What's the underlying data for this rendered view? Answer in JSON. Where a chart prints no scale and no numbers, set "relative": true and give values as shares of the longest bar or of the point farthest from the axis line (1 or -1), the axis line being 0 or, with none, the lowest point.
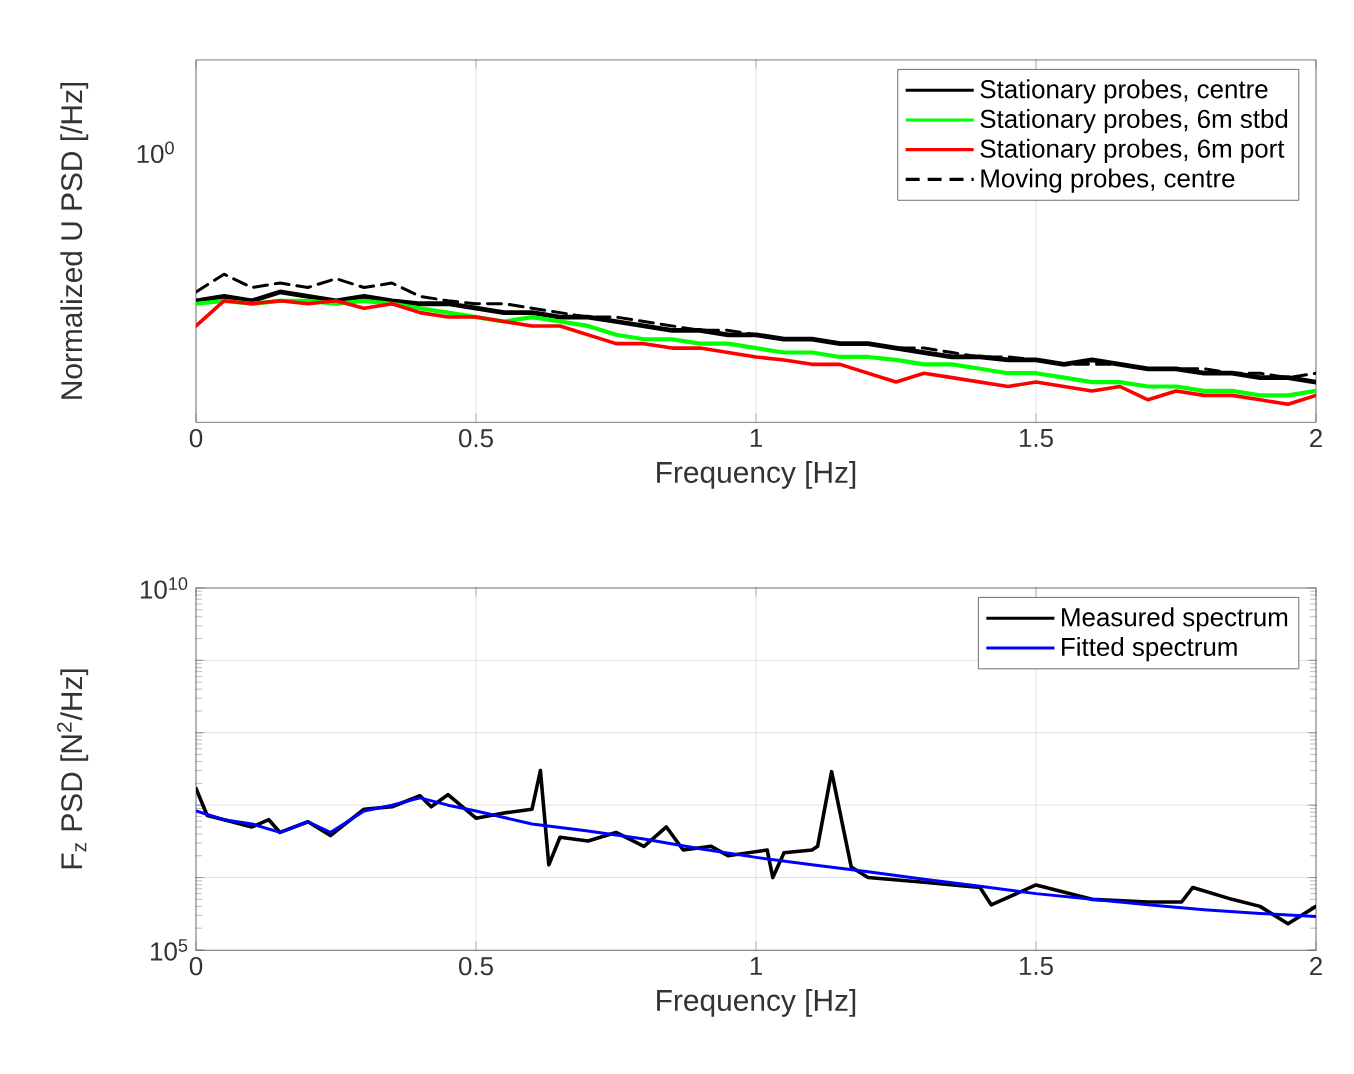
{
  "chart_data": [
    {
      "type": "line",
      "xlabel": "Frequency [Hz]",
      "ylabel": "Normalized U PSD [/Hz]",
      "relative": true,
      "grid": "x",
      "legend": "top right",
      "marker": "none",
      "annotations": [
        "10$^{0}$"
      ],
      "xlim": [
        0,
        2
      ],
      "xticks": [
        0,
        0.5,
        1,
        1.5,
        2
      ],
      "x": [
        0,
        0.05,
        0.1,
        0.15,
        0.2,
        0.25,
        0.3,
        0.35,
        0.4,
        0.45,
        0.5,
        0.55,
        0.6,
        0.65,
        0.7,
        0.75,
        0.8,
        0.85,
        0.9,
        0.95,
        1.0,
        1.05,
        1.1,
        1.15,
        1.2,
        1.25,
        1.3,
        1.35,
        1.4,
        1.45,
        1.5,
        1.55,
        1.6,
        1.65,
        1.7,
        1.75,
        1.8,
        1.85,
        1.9,
        1.95,
        2.0
      ],
      "series": [
        {
          "name": "Stationary probes, centre",
          "color": "#000000",
          "line_style": "solid",
          "values": [
            0.82,
            0.85,
            0.82,
            0.88,
            0.85,
            0.82,
            0.85,
            0.82,
            0.8,
            0.8,
            0.77,
            0.74,
            0.74,
            0.71,
            0.71,
            0.68,
            0.65,
            0.62,
            0.62,
            0.59,
            0.59,
            0.56,
            0.56,
            0.53,
            0.53,
            0.5,
            0.47,
            0.44,
            0.44,
            0.42,
            0.42,
            0.39,
            0.42,
            0.39,
            0.36,
            0.36,
            0.33,
            0.33,
            0.3,
            0.3,
            0.27
          ]
        },
        {
          "name": "Stationary probes, 6m stbd",
          "color": "#00ff00",
          "line_style": "solid",
          "values": [
            0.8,
            0.82,
            0.8,
            0.82,
            0.82,
            0.8,
            0.82,
            0.8,
            0.77,
            0.74,
            0.71,
            0.68,
            0.71,
            0.68,
            0.65,
            0.59,
            0.56,
            0.56,
            0.53,
            0.53,
            0.5,
            0.47,
            0.47,
            0.44,
            0.44,
            0.42,
            0.39,
            0.39,
            0.36,
            0.33,
            0.33,
            0.3,
            0.27,
            0.27,
            0.24,
            0.24,
            0.21,
            0.21,
            0.18,
            0.18,
            0.21
          ]
        },
        {
          "name": "Stationary probes, 6m port",
          "color": "#ff0000",
          "line_style": "solid",
          "values": [
            0.65,
            0.82,
            0.8,
            0.82,
            0.8,
            0.82,
            0.77,
            0.8,
            0.74,
            0.71,
            0.71,
            0.68,
            0.65,
            0.65,
            0.59,
            0.53,
            0.53,
            0.5,
            0.5,
            0.47,
            0.44,
            0.42,
            0.39,
            0.39,
            0.33,
            0.27,
            0.33,
            0.3,
            0.27,
            0.24,
            0.27,
            0.24,
            0.21,
            0.24,
            0.15,
            0.21,
            0.18,
            0.18,
            0.15,
            0.12,
            0.18
          ]
        },
        {
          "name": "Moving probes, centre",
          "color": "#000000",
          "line_style": "dashed",
          "values": [
            0.88,
            1,
            0.91,
            0.94,
            0.91,
            0.97,
            0.91,
            0.94,
            0.85,
            0.82,
            0.8,
            0.8,
            0.77,
            0.74,
            0.71,
            0.71,
            0.68,
            0.65,
            0.62,
            0.62,
            0.59,
            0.56,
            0.56,
            0.53,
            0.53,
            0.5,
            0.5,
            0.47,
            0.44,
            0.44,
            0.42,
            0.39,
            0.39,
            0.39,
            0.36,
            0.36,
            0.36,
            0.33,
            0.33,
            0.3,
            0.33
          ]
        }
      ]
    },
    {
      "type": "line",
      "xlabel": "Frequency [Hz]",
      "ylabel": "F$_{z}$ PSD [N$^{2}$/Hz]",
      "log": "y",
      "grid": true,
      "legend": "top right",
      "marker": "none",
      "xlim": [
        0,
        2
      ],
      "ylim": [
        100000,
        10000000000
      ],
      "xticks": [
        0,
        0.5,
        1,
        1.5,
        2
      ],
      "yticks": [
        {
          "value": 100000,
          "label": "10$^{5}$"
        },
        {
          "value": 1000000,
          "label": null
        },
        {
          "value": 10000000,
          "label": null
        },
        {
          "value": 100000000,
          "label": null
        },
        {
          "value": 1000000000,
          "label": null
        },
        {
          "value": 10000000000,
          "label": "10$^{10}$"
        }
      ],
      "series": [
        {
          "name": "Measured spectrum",
          "color": "#000000",
          "line_style": "solid",
          "x": [
            0,
            0.02,
            0.05,
            0.1,
            0.13,
            0.15,
            0.2,
            0.24,
            0.3,
            0.35,
            0.4,
            0.42,
            0.45,
            0.5,
            0.55,
            0.6,
            0.615,
            0.63,
            0.65,
            0.7,
            0.75,
            0.8,
            0.84,
            0.87,
            0.92,
            0.95,
            1.02,
            1.03,
            1.05,
            1.1,
            1.11,
            1.135,
            1.17,
            1.2,
            1.3,
            1.4,
            1.42,
            1.5,
            1.6,
            1.7,
            1.76,
            1.78,
            1.85,
            1.9,
            1.95,
            2.0
          ],
          "values": [
            17000000.0,
            7200000.0,
            6300000.0,
            5000000.0,
            6300000.0,
            4200000.0,
            5900000.0,
            3800000.0,
            8800000.0,
            9500000.0,
            13500000.0,
            9500000.0,
            14000000.0,
            6600000.0,
            7800000.0,
            8800000.0,
            30000000.0,
            1500000.0,
            3600000.0,
            3200000.0,
            4200000.0,
            2700000.0,
            5000000.0,
            2400000.0,
            2700000.0,
            2000000.0,
            2400000.0,
            1000000.0,
            2200000.0,
            2400000.0,
            2700000.0,
            29000000.0,
            1400000.0,
            1000000.0,
            860000.0,
            730000.0,
            420000.0,
            790000.0,
            500000.0,
            460000.0,
            460000.0,
            730000.0,
            500000.0,
            400000.0,
            230000.0,
            400000.0
          ]
        },
        {
          "name": "Fitted spectrum",
          "color": "#0000ff",
          "line_style": "solid",
          "x": [
            0,
            0.05,
            0.1,
            0.15,
            0.2,
            0.24,
            0.3,
            0.35,
            0.4,
            0.45,
            0.5,
            0.6,
            0.7,
            0.8,
            0.9,
            1.0,
            1.1,
            1.2,
            1.3,
            1.4,
            1.5,
            1.6,
            1.7,
            1.8,
            1.9,
            2.0
          ],
          "values": [
            8300000.0,
            6300000.0,
            5500000.0,
            4200000.0,
            5900000.0,
            4200000.0,
            8300000.0,
            10000000.0,
            12600000.0,
            10000000.0,
            8300000.0,
            5500000.0,
            4400000.0,
            3400000.0,
            2500000.0,
            1900000.0,
            1500000.0,
            1200000.0,
            950000.0,
            760000.0,
            600000.0,
            500000.0,
            420000.0,
            360000.0,
            320000.0,
            290000.0
          ]
        }
      ]
    }
  ]
}
